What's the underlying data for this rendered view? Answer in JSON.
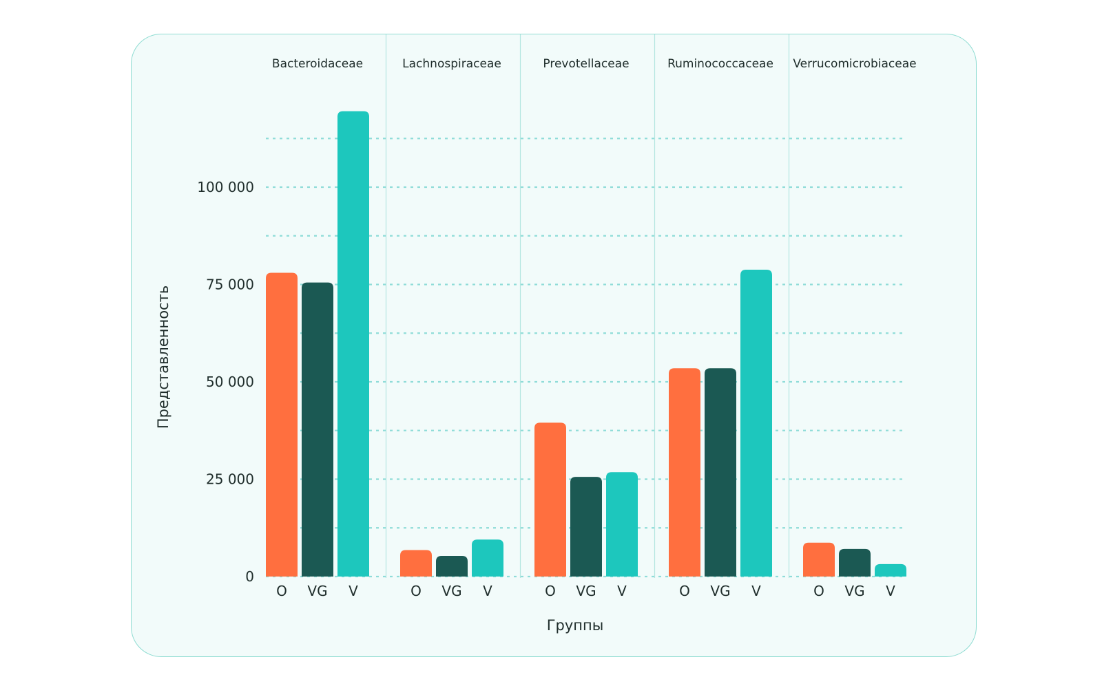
{
  "chart_data": {
    "type": "bar",
    "title": "",
    "xlabel": "Группы",
    "ylabel": "Представленность",
    "ylim": [
      0,
      130000
    ],
    "yticks": [
      {
        "value": 0,
        "label": "0"
      },
      {
        "value": 25000,
        "label": "25 000"
      },
      {
        "value": 50000,
        "label": "50 000"
      },
      {
        "value": 75000,
        "label": "75 000"
      },
      {
        "value": 100000,
        "label": "100 000"
      }
    ],
    "gridlines": [
      0,
      12500,
      25000,
      37500,
      50000,
      62500,
      75000,
      87500,
      100000,
      112500
    ],
    "categories": [
      "Bacteroidaceae",
      "Lachnospiraceae",
      "Prevotellaceae",
      "Ruminococcaceae",
      "Verrucomicrobiaceae"
    ],
    "groups": [
      "O",
      "VG",
      "V"
    ],
    "colors": {
      "O": "#ff6f3f",
      "VG": "#1b5953",
      "V": "#1dc7bd",
      "grid": "#8fdcd8",
      "divider": "#b3e6e0"
    },
    "series": [
      {
        "name": "O",
        "values": [
          78000,
          6800,
          39500,
          53500,
          8700
        ]
      },
      {
        "name": "VG",
        "values": [
          75500,
          5300,
          25600,
          53500,
          7100
        ]
      },
      {
        "name": "V",
        "values": [
          119500,
          9500,
          26800,
          78800,
          3200
        ]
      }
    ]
  }
}
